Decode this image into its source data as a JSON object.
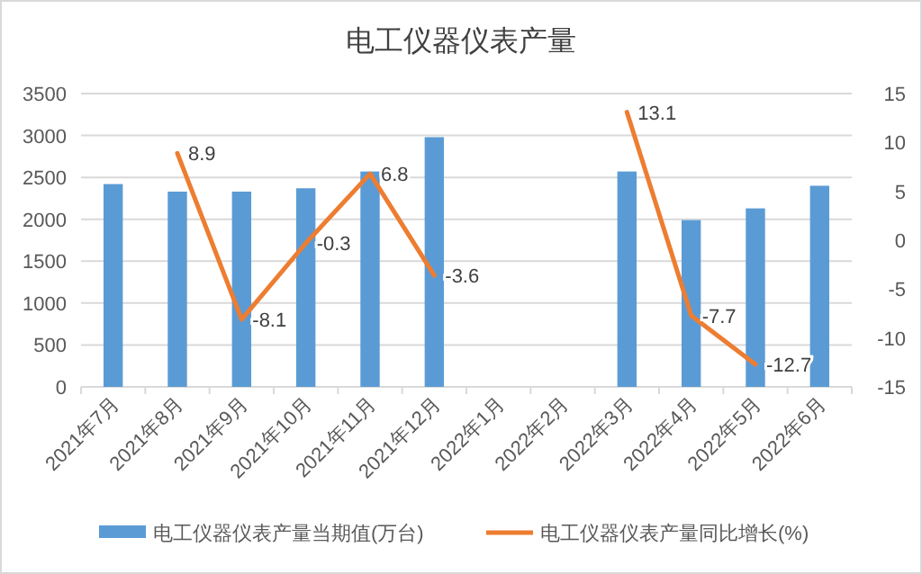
{
  "chart_data": {
    "type": "bar",
    "title": "电工仪器仪表产量",
    "categories": [
      "2021年7月",
      "2021年8月",
      "2021年9月",
      "2021年10月",
      "2021年11月",
      "2021年12月",
      "2022年1月",
      "2022年2月",
      "2022年3月",
      "2022年4月",
      "2022年5月",
      "2022年6月"
    ],
    "series": [
      {
        "name": "电工仪器仪表产量当期值(万台)",
        "color": "#5b9bd5",
        "values": [
          2420,
          2330,
          2330,
          2370,
          2570,
          2980,
          null,
          null,
          2570,
          1990,
          2130,
          2400
        ]
      },
      {
        "name": "电工仪器仪表产量同比增长(%)",
        "type": "line",
        "axis": "y2",
        "color": "#ed7d31",
        "values": [
          null,
          8.9,
          -8.1,
          -0.3,
          6.8,
          -3.6,
          null,
          null,
          13.1,
          -7.7,
          -12.7,
          null
        ],
        "value_labels": [
          null,
          "8.9",
          "-8.1",
          "-0.3",
          "6.8",
          "-3.6",
          null,
          null,
          "13.1",
          "-7.7",
          "-12.7",
          null
        ]
      }
    ],
    "ylim": [
      0,
      3500
    ],
    "yticks": [
      0,
      500,
      1000,
      1500,
      2000,
      2500,
      3000,
      3500
    ],
    "y2lim": [
      -15,
      15
    ],
    "y2ticks": [
      -15,
      -10,
      -5,
      0,
      5,
      10,
      15
    ],
    "grid": "y",
    "legend": "bottom"
  }
}
